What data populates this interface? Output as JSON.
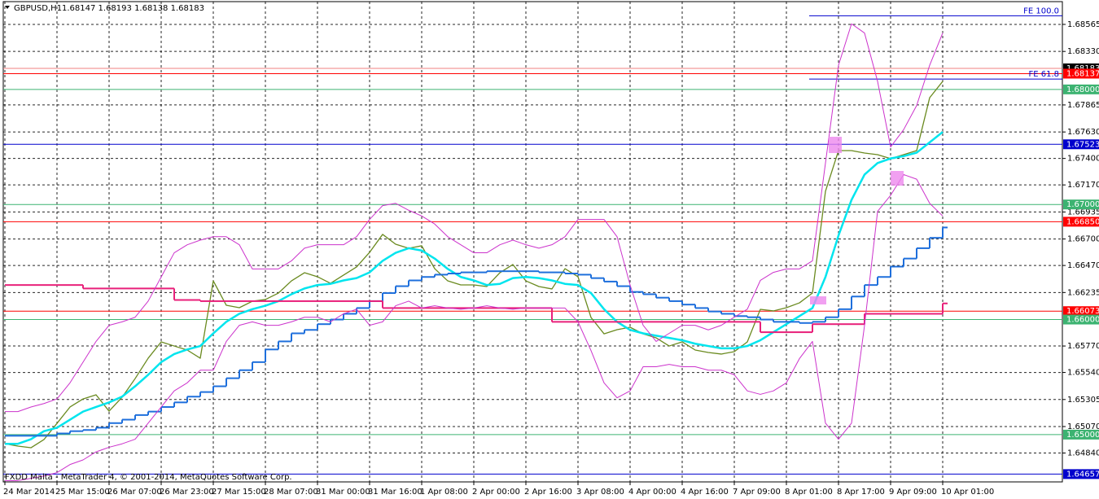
{
  "chart_data": {
    "type": "line",
    "title": "GBPUSD,H1",
    "subtitle": "1.68147 1.68193 1.68138 1.68183",
    "footer": "FXDD Malta - MetaTrader 4, © 2001-2014, MetaQuotes Software Corp.",
    "x": [
      0,
      4,
      8,
      12,
      16,
      20,
      24,
      28,
      32,
      36,
      40,
      44,
      48,
      52,
      56,
      60,
      64,
      68,
      72,
      76,
      80,
      84,
      88,
      92,
      96,
      100,
      104,
      108,
      112,
      116,
      120,
      124,
      128,
      132,
      136,
      140,
      144,
      148,
      152,
      156,
      160,
      164,
      168,
      172,
      176,
      180,
      184,
      188,
      192,
      196,
      200,
      204,
      208,
      212,
      216,
      220,
      224,
      228,
      232,
      236,
      240,
      244,
      248,
      252,
      256,
      260,
      264,
      268,
      272,
      276,
      280,
      284,
      288
    ],
    "series": [
      {
        "color": "#6a8a1f",
        "style": "line",
        "width": 1.3,
        "values": [
          1.64921,
          1.649,
          1.64886,
          1.64957,
          1.65098,
          1.6524,
          1.6531,
          1.65346,
          1.65204,
          1.65325,
          1.65487,
          1.65664,
          1.65806,
          1.6577,
          1.65735,
          1.65664,
          1.66336,
          1.66124,
          1.66103,
          1.66159,
          1.66174,
          1.6623,
          1.66336,
          1.66407,
          1.66372,
          1.66315,
          1.66386,
          1.66457,
          1.66584,
          1.6674,
          1.66655,
          1.66619,
          1.66641,
          1.66442,
          1.66336,
          1.66301,
          1.66301,
          1.66287,
          1.66407,
          1.66478,
          1.66336,
          1.66287,
          1.66266,
          1.66442,
          1.66372,
          1.66018,
          1.65876,
          1.65912,
          1.65933,
          1.65876,
          1.65841,
          1.6577,
          1.65806,
          1.65735,
          1.65714,
          1.657,
          1.65721,
          1.65806,
          1.66089,
          1.66075,
          1.66103,
          1.66145,
          1.6623,
          1.67115,
          1.67468,
          1.67468,
          1.67447,
          1.67433,
          1.67398,
          1.67433,
          1.67468,
          1.67928,
          1.6807
        ]
      },
      {
        "color": "#00e5ee",
        "style": "line",
        "width": 2.5,
        "values": [
          1.6492,
          1.6492,
          1.6496,
          1.6503,
          1.6506,
          1.6513,
          1.652,
          1.6524,
          1.6528,
          1.6533,
          1.6542,
          1.6552,
          1.6563,
          1.657,
          1.6574,
          1.6577,
          1.6588,
          1.6598,
          1.6605,
          1.6609,
          1.6612,
          1.6616,
          1.6622,
          1.6627,
          1.663,
          1.6631,
          1.6634,
          1.6636,
          1.6641,
          1.6651,
          1.6658,
          1.6662,
          1.666,
          1.6653,
          1.6644,
          1.6637,
          1.6634,
          1.663,
          1.6631,
          1.6636,
          1.6637,
          1.6636,
          1.6634,
          1.6631,
          1.663,
          1.6623,
          1.6609,
          1.6598,
          1.6591,
          1.6588,
          1.6586,
          1.6584,
          1.6582,
          1.6579,
          1.6577,
          1.6575,
          1.6575,
          1.6577,
          1.6582,
          1.6589,
          1.6596,
          1.6603,
          1.661,
          1.6637,
          1.6673,
          1.6704,
          1.6726,
          1.6736,
          1.674,
          1.6742,
          1.6745,
          1.6754,
          1.6763
        ]
      },
      {
        "color": "#1e6fdc",
        "style": "step",
        "width": 2,
        "values": [
          1.6499,
          1.6499,
          1.6499,
          1.6499,
          1.6501,
          1.6503,
          1.6504,
          1.6506,
          1.651,
          1.6513,
          1.6517,
          1.652,
          1.6524,
          1.6528,
          1.6533,
          1.6537,
          1.6542,
          1.6549,
          1.6556,
          1.6563,
          1.6574,
          1.6581,
          1.6588,
          1.6591,
          1.6596,
          1.66,
          1.6605,
          1.661,
          1.6616,
          1.6623,
          1.6629,
          1.6634,
          1.6637,
          1.6639,
          1.664,
          1.6641,
          1.6641,
          1.6642,
          1.6642,
          1.6642,
          1.6642,
          1.6641,
          1.6641,
          1.664,
          1.6639,
          1.6636,
          1.6633,
          1.6629,
          1.6624,
          1.6622,
          1.6619,
          1.6616,
          1.6613,
          1.661,
          1.6607,
          1.6605,
          1.6603,
          1.6602,
          1.66,
          1.6598,
          1.6598,
          1.6597,
          1.6598,
          1.6602,
          1.6609,
          1.662,
          1.663,
          1.6637,
          1.6646,
          1.6653,
          1.6662,
          1.6671,
          1.668
        ]
      },
      {
        "color": "#e8207a",
        "style": "step",
        "width": 2,
        "values": [
          1.663,
          1.663,
          1.663,
          1.663,
          1.663,
          1.663,
          1.6627,
          1.6627,
          1.6627,
          1.6627,
          1.6627,
          1.6627,
          1.6627,
          1.6617,
          1.6617,
          1.6616,
          1.6616,
          1.6616,
          1.6616,
          1.6616,
          1.6616,
          1.6616,
          1.6616,
          1.6616,
          1.6616,
          1.6616,
          1.6616,
          1.6616,
          1.6616,
          1.661,
          1.661,
          1.661,
          1.661,
          1.661,
          1.661,
          1.661,
          1.661,
          1.661,
          1.661,
          1.661,
          1.661,
          1.661,
          1.6598,
          1.6598,
          1.6598,
          1.6598,
          1.6598,
          1.6598,
          1.6598,
          1.6598,
          1.6598,
          1.6598,
          1.6598,
          1.6598,
          1.6598,
          1.6598,
          1.6598,
          1.6598,
          1.6589,
          1.6589,
          1.6589,
          1.6589,
          1.6596,
          1.6596,
          1.6596,
          1.6596,
          1.6605,
          1.6605,
          1.6605,
          1.6605,
          1.6605,
          1.6605,
          1.6614
        ]
      },
      {
        "color": "#cc33cc",
        "style": "line",
        "width": 1,
        "values": [
          1.652,
          1.652,
          1.6524,
          1.6527,
          1.6531,
          1.6545,
          1.6563,
          1.6581,
          1.6595,
          1.6598,
          1.6602,
          1.6616,
          1.6637,
          1.6658,
          1.6665,
          1.6669,
          1.6672,
          1.6672,
          1.6665,
          1.6644,
          1.6644,
          1.6644,
          1.6651,
          1.6662,
          1.6665,
          1.6665,
          1.6665,
          1.6672,
          1.6687,
          1.6699,
          1.6701,
          1.6695,
          1.669,
          1.6683,
          1.6672,
          1.6665,
          1.6658,
          1.6658,
          1.6665,
          1.6669,
          1.6665,
          1.6662,
          1.6665,
          1.6672,
          1.6687,
          1.6687,
          1.6687,
          1.6672,
          1.663,
          1.6595,
          1.6581,
          1.6588,
          1.6595,
          1.6595,
          1.6591,
          1.6595,
          1.6602,
          1.6609,
          1.6634,
          1.6641,
          1.6644,
          1.6644,
          1.6651,
          1.6736,
          1.6821,
          1.6857,
          1.6849,
          1.6807,
          1.675,
          1.6765,
          1.6786,
          1.6821,
          1.6849
        ]
      },
      {
        "color": "#cc33cc",
        "style": "line",
        "width": 1,
        "values": [
          1.646,
          1.646,
          1.6462,
          1.6464,
          1.6467,
          1.6474,
          1.6478,
          1.6485,
          1.6489,
          1.6492,
          1.6496,
          1.651,
          1.6524,
          1.6538,
          1.6545,
          1.6556,
          1.6556,
          1.6581,
          1.6595,
          1.6598,
          1.6595,
          1.6595,
          1.6598,
          1.6602,
          1.6602,
          1.6598,
          1.6605,
          1.6609,
          1.6595,
          1.6598,
          1.6612,
          1.6616,
          1.661,
          1.6612,
          1.661,
          1.6609,
          1.661,
          1.6612,
          1.661,
          1.6609,
          1.661,
          1.661,
          1.661,
          1.661,
          1.6598,
          1.6573,
          1.6545,
          1.6532,
          1.6538,
          1.6559,
          1.6559,
          1.6561,
          1.6559,
          1.6559,
          1.6556,
          1.6556,
          1.6552,
          1.6538,
          1.6535,
          1.6538,
          1.6545,
          1.6566,
          1.6581,
          1.651,
          1.6496,
          1.651,
          1.6595,
          1.6694,
          1.6708,
          1.6726,
          1.6722,
          1.6701,
          1.669
        ]
      }
    ],
    "xlim": [
      -1.5,
      324.75
    ],
    "xticks": [
      {
        "value": 0,
        "label": "24 Mar 2014"
      },
      {
        "value": 16,
        "label": "25 Mar 15:00"
      },
      {
        "value": 32,
        "label": "26 Mar 07:00"
      },
      {
        "value": 48,
        "label": "26 Mar 23:00"
      },
      {
        "value": 64,
        "label": "27 Mar 15:00"
      },
      {
        "value": 80,
        "label": "28 Mar 07:00"
      },
      {
        "value": 96,
        "label": "31 Mar 00:00"
      },
      {
        "value": 112,
        "label": "31 Mar 16:00"
      },
      {
        "value": 128,
        "label": "1 Apr 08:00"
      },
      {
        "value": 144,
        "label": "2 Apr 00:00"
      },
      {
        "value": 160,
        "label": "2 Apr 16:00"
      },
      {
        "value": 176,
        "label": "3 Apr 08:00"
      },
      {
        "value": 192,
        "label": "4 Apr 00:00"
      },
      {
        "value": 208,
        "label": "4 Apr 16:00"
      },
      {
        "value": 224,
        "label": "7 Apr 09:00"
      },
      {
        "value": 240,
        "label": "8 Apr 01:00"
      },
      {
        "value": 256,
        "label": "8 Apr 17:00"
      },
      {
        "value": 272,
        "label": "9 Apr 09:00"
      },
      {
        "value": 288,
        "label": "10 Apr 01:00"
      }
    ],
    "ylim": [
      1.68777,
      1.64589
    ],
    "yticks": [
      1.68565,
      {
        "value": 1.6833,
        "label": "1.68330"
      },
      1.67865,
      {
        "value": 1.6763,
        "label": "1.67630"
      },
      {
        "value": 1.674,
        "label": "1.67400"
      },
      {
        "value": 1.6717,
        "label": "1.67170"
      },
      1.66935,
      {
        "value": 1.667,
        "label": "1.66700"
      },
      {
        "value": 1.6647,
        "label": "1.66470"
      },
      1.66235,
      {
        "value": 1.6577,
        "label": "1.65770"
      },
      {
        "value": 1.6554,
        "label": "1.65540"
      },
      1.65305,
      {
        "value": 1.6507,
        "label": "1.65070"
      },
      {
        "value": 1.6484,
        "label": "1.64840"
      }
    ],
    "grid": true,
    "levels": [
      {
        "value": 1.68183,
        "label": "1.68183",
        "color": "#000000",
        "line": "#f08080"
      },
      {
        "value": 1.68137,
        "label": "1.68137",
        "color": "#ff0000",
        "line": "#ff0000"
      },
      {
        "value": 1.68,
        "label": "1.68000",
        "color": "#3cb371",
        "line": "#3cb371"
      },
      {
        "value": 1.67523,
        "label": "1.67523",
        "color": "#0000cd",
        "line": "#0000cd"
      },
      {
        "value": 1.67,
        "label": "1.67000",
        "color": "#3cb371",
        "line": "#3cb371"
      },
      {
        "value": 1.6685,
        "label": "1.66850",
        "color": "#ff0000",
        "line": "#ff0000"
      },
      {
        "value": 1.66073,
        "label": "1.66073",
        "color": "#ff0000",
        "line": "#ff0000"
      },
      {
        "value": 1.66,
        "label": "1.66000",
        "color": "#3cb371",
        "line": "#3cb371"
      },
      {
        "value": 1.65,
        "label": "1.65000",
        "color": "#3cb371",
        "line": "#3cb371"
      },
      {
        "value": 1.64657,
        "label": "1.64657",
        "color": "#0000cd",
        "line": "#0000cd"
      }
    ],
    "fibo": [
      {
        "label": "FE 100.0",
        "value": 1.6864,
        "from_x": 247
      },
      {
        "label": "FE 61.8",
        "value": 1.6809,
        "from_x": 247
      }
    ]
  }
}
